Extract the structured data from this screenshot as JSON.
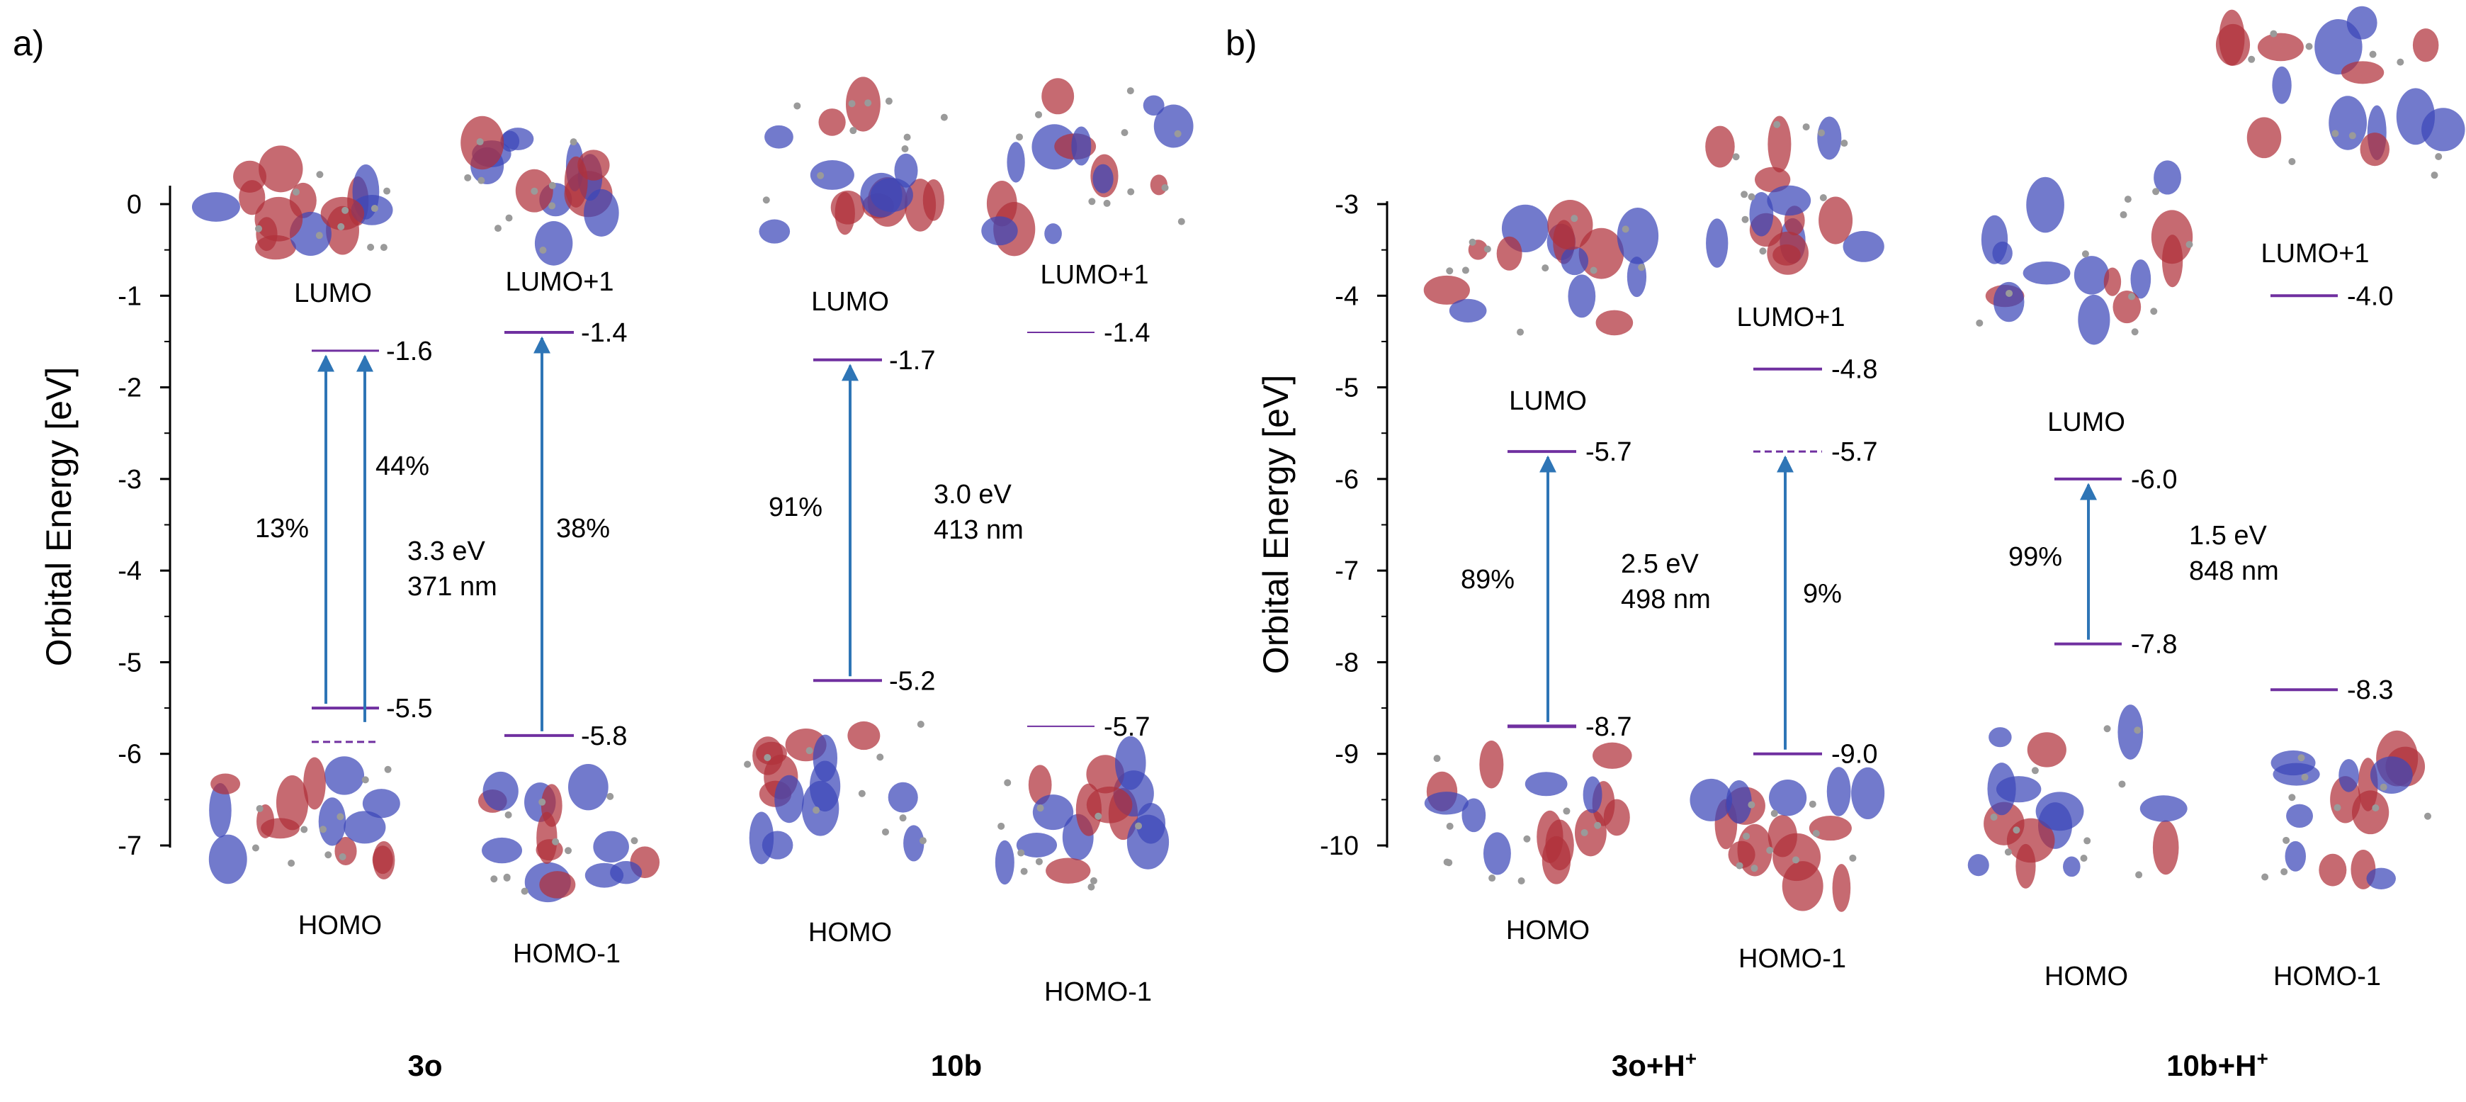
{
  "colors": {
    "level": "#7030a0",
    "arrow": "#2e75b6",
    "axis": "#000000",
    "text": "#000000",
    "lobe_red": "#b0303a",
    "lobe_blue": "#3c46b8"
  },
  "panels": [
    {
      "label": "a)",
      "ylabel": "Orbital Energy [eV]",
      "yticks": [
        "0",
        "-1",
        "-2",
        "-3",
        "-4",
        "-5",
        "-6",
        "-7"
      ],
      "ymin": -7,
      "ymax": 0,
      "compounds": [
        {
          "name": "3o",
          "orbitals": [
            {
              "key": "lumo",
              "label": "LUMO",
              "energy": -1.6,
              "value_text": "-1.6"
            },
            {
              "key": "lumo1",
              "label": "LUMO+1",
              "energy": -1.4,
              "value_text": "-1.4"
            },
            {
              "key": "homo",
              "label": "HOMO",
              "energy": -5.5,
              "value_text": "-5.5"
            },
            {
              "key": "homo1_dashed",
              "label": "",
              "energy": -5.7,
              "value_text": ""
            },
            {
              "key": "homo1",
              "label": "HOMO-1",
              "energy": -5.8,
              "value_text": "-5.8"
            }
          ],
          "transitions": [
            {
              "contribution": "13%"
            },
            {
              "contribution": "44%"
            },
            {
              "contribution": "38%"
            }
          ],
          "gap_ev": "3.3 eV",
          "gap_nm": "371 nm"
        },
        {
          "name": "10b",
          "orbitals": [
            {
              "key": "lumo",
              "label": "LUMO",
              "energy": -1.7,
              "value_text": "-1.7"
            },
            {
              "key": "lumo1",
              "label": "LUMO+1",
              "energy": -1.4,
              "value_text": "-1.4"
            },
            {
              "key": "homo",
              "label": "HOMO",
              "energy": -5.2,
              "value_text": "-5.2"
            },
            {
              "key": "homo1",
              "label": "HOMO-1",
              "energy": -5.7,
              "value_text": "-5.7"
            }
          ],
          "transitions": [
            {
              "contribution": "91%"
            }
          ],
          "gap_ev": "3.0 eV",
          "gap_nm": "413 nm"
        }
      ]
    },
    {
      "label": "b)",
      "ylabel": "Orbital Energy [eV]",
      "yticks": [
        "-3",
        "-4",
        "-5",
        "-6",
        "-7",
        "-8",
        "-9",
        "-10"
      ],
      "ymin": -10,
      "ymax": -3,
      "compounds": [
        {
          "name": "3o+H",
          "name_sup": "+",
          "orbitals": [
            {
              "key": "lumo",
              "label": "LUMO",
              "energy": -5.7,
              "value_text": "-5.7"
            },
            {
              "key": "lumo1",
              "label": "LUMO+1",
              "energy": -4.8,
              "value_text": "-4.8"
            },
            {
              "key": "lumo_dashed",
              "label": "",
              "energy": -5.7,
              "value_text": "-5.7"
            },
            {
              "key": "homo",
              "label": "HOMO",
              "energy": -8.7,
              "value_text": "-8.7"
            },
            {
              "key": "homo1",
              "label": "HOMO-1",
              "energy": -9.0,
              "value_text": "-9.0"
            }
          ],
          "transitions": [
            {
              "contribution": "89%"
            },
            {
              "contribution": "9%"
            }
          ],
          "gap_ev": "2.5 eV",
          "gap_nm": "498 nm"
        },
        {
          "name": "10b+H",
          "name_sup": "+",
          "orbitals": [
            {
              "key": "lumo",
              "label": "LUMO",
              "energy": -6.0,
              "value_text": "-6.0"
            },
            {
              "key": "lumo1",
              "label": "LUMO+1",
              "energy": -4.0,
              "value_text": "-4.0"
            },
            {
              "key": "homo",
              "label": "HOMO",
              "energy": -7.8,
              "value_text": "-7.8"
            },
            {
              "key": "homo1",
              "label": "HOMO-1",
              "energy": -8.3,
              "value_text": "-8.3"
            }
          ],
          "transitions": [
            {
              "contribution": "99%"
            }
          ],
          "gap_ev": "1.5 eV",
          "gap_nm": "848 nm"
        }
      ]
    }
  ]
}
